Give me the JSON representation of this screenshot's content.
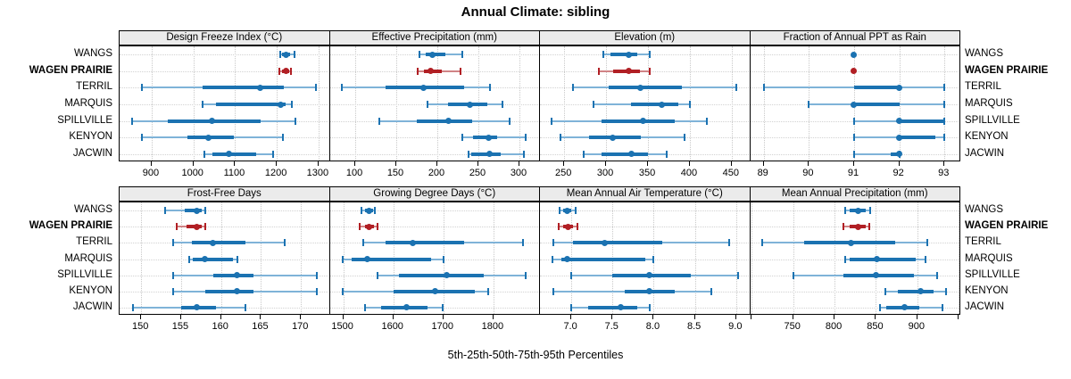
{
  "chart_data": {
    "type": "percentile-dotplot",
    "title": "Annual Climate: sibling",
    "xlabel": "5th-25th-50th-75th-95th Percentiles",
    "legend_position": "none",
    "grid": "dotted",
    "stations": [
      "WANGS",
      "WAGEN PRAIRIE",
      "TERRIL",
      "MARQUIS",
      "SPILLVILLE",
      "KENYON",
      "JACWIN"
    ],
    "highlighted_station": "WAGEN PRAIRIE",
    "percentile_levels": [
      5,
      25,
      50,
      75,
      95
    ],
    "colors": {
      "series": "#1b72b1",
      "series_light": "#7fb3d8",
      "highlight": "#b11f24",
      "highlight_light": "#d08385",
      "strip_bg": "#ebebeb",
      "grid": "#c9c9c9",
      "border": "#000000"
    },
    "panels": [
      {
        "title": "Design Freeze Index (°C)",
        "xlim": [
          823,
          1327
        ],
        "ticks": [
          900,
          1000,
          1100,
          1200,
          1300
        ],
        "tick_labels": [
          "900",
          "1000",
          "1100",
          "1200",
          "1300"
        ],
        "minor_ticks": [],
        "series": [
          {
            "station": "WANGS",
            "percentiles": [
              1208,
              1213,
              1222,
              1232,
              1243
            ]
          },
          {
            "station": "WAGEN PRAIRIE",
            "percentiles": [
              1206,
              1212,
              1222,
              1230,
              1233
            ]
          },
          {
            "station": "TERRIL",
            "percentiles": [
              877,
              1021,
              1161,
              1217,
              1294
            ]
          },
          {
            "station": "MARQUIS",
            "percentiles": [
              1023,
              1055,
              1209,
              1221,
              1235
            ]
          },
          {
            "station": "SPILLVILLE",
            "percentiles": [
              853,
              938,
              1045,
              1162,
              1245
            ]
          },
          {
            "station": "KENYON",
            "percentiles": [
              877,
              986,
              1035,
              1098,
              1214
            ]
          },
          {
            "station": "JACWIN",
            "percentiles": [
              1026,
              1045,
              1086,
              1150,
              1192
            ]
          }
        ]
      },
      {
        "title": "Effective Precipitation (mm)",
        "xlim": [
          69,
          325
        ],
        "ticks": [
          100,
          150,
          200,
          250,
          300
        ],
        "tick_labels": [
          "100",
          "150",
          "200",
          "250",
          "300"
        ],
        "minor_ticks": [],
        "series": [
          {
            "station": "WANGS",
            "percentiles": [
              178,
              186,
              194,
              210,
              230
            ]
          },
          {
            "station": "WAGEN PRAIRIE",
            "percentiles": [
              176,
              184,
              192,
              205,
              228
            ]
          },
          {
            "station": "TERRIL",
            "percentiles": [
              84,
              137,
              183,
              233,
              264
            ]
          },
          {
            "station": "MARQUIS",
            "percentiles": [
              188,
              213,
              240,
              261,
              279
            ]
          },
          {
            "station": "SPILLVILLE",
            "percentiles": [
              129,
              175,
              214,
              242,
              288
            ]
          },
          {
            "station": "KENYON",
            "percentiles": [
              230,
              243,
              262,
              273,
              308
            ]
          },
          {
            "station": "JACWIN",
            "percentiles": [
              238,
              241,
              264,
              277,
              305
            ]
          }
        ]
      },
      {
        "title": "Elevation (m)",
        "xlim": [
          221,
          472
        ],
        "ticks": [
          250,
          300,
          350,
          400,
          450
        ],
        "tick_labels": [
          "250",
          "300",
          "350",
          "400",
          "450"
        ],
        "minor_ticks": [],
        "series": [
          {
            "station": "WANGS",
            "percentiles": [
              297,
              305,
              327,
              337,
              352
            ]
          },
          {
            "station": "WAGEN PRAIRIE",
            "percentiles": [
              291,
              308,
              327,
              340,
              352
            ]
          },
          {
            "station": "TERRIL",
            "percentiles": [
              260,
              303,
              341,
              391,
              455
            ]
          },
          {
            "station": "MARQUIS",
            "percentiles": [
              285,
              330,
              367,
              386,
              400
            ]
          },
          {
            "station": "SPILLVILLE",
            "percentiles": [
              235,
              295,
              344,
              382,
              420
            ]
          },
          {
            "station": "KENYON",
            "percentiles": [
              245,
              280,
              308,
              341,
              394
            ]
          },
          {
            "station": "JACWIN",
            "percentiles": [
              273,
              295,
              330,
              350,
              372
            ]
          }
        ]
      },
      {
        "title": "Fraction of Annual PPT as Rain",
        "xlim": [
          88.7,
          93.35
        ],
        "ticks": [
          89,
          90,
          91,
          92,
          93
        ],
        "tick_labels": [
          "89",
          "90",
          "91",
          "92",
          "93"
        ],
        "minor_ticks": [],
        "series": [
          {
            "station": "WANGS",
            "percentiles": [
              91,
              91,
              91,
              91,
              91
            ]
          },
          {
            "station": "WAGEN PRAIRIE",
            "percentiles": [
              91,
              91,
              91,
              91,
              91
            ]
          },
          {
            "station": "TERRIL",
            "percentiles": [
              89,
              91,
              92,
              92,
              93
            ]
          },
          {
            "station": "MARQUIS",
            "percentiles": [
              90,
              91,
              91,
              92,
              93
            ]
          },
          {
            "station": "SPILLVILLE",
            "percentiles": [
              91,
              92,
              92,
              93,
              93
            ]
          },
          {
            "station": "KENYON",
            "percentiles": [
              91,
              92,
              92,
              92.8,
              93
            ]
          },
          {
            "station": "JACWIN",
            "percentiles": [
              91,
              91.8,
              92,
              92,
              92
            ]
          }
        ]
      },
      {
        "title": "Frost-Free Days",
        "xlim": [
          147.3,
          173.6
        ],
        "ticks": [
          150,
          155,
          160,
          165,
          170
        ],
        "tick_labels": [
          "150",
          "155",
          "160",
          "165",
          "170"
        ],
        "minor_ticks": [],
        "series": [
          {
            "station": "WANGS",
            "percentiles": [
              153,
              155.5,
              157,
              157.6,
              158
            ]
          },
          {
            "station": "WAGEN PRAIRIE",
            "percentiles": [
              154.5,
              155.7,
              157,
              157.6,
              158
            ]
          },
          {
            "station": "TERRIL",
            "percentiles": [
              154,
              156.4,
              159,
              163,
              168
            ]
          },
          {
            "station": "MARQUIS",
            "percentiles": [
              156,
              156.5,
              158,
              161.5,
              162
            ]
          },
          {
            "station": "SPILLVILLE",
            "percentiles": [
              154,
              159,
              162,
              164,
              172
            ]
          },
          {
            "station": "KENYON",
            "percentiles": [
              154,
              158,
              162,
              164,
              172
            ]
          },
          {
            "station": "JACWIN",
            "percentiles": [
              149,
              155,
              157,
              159.4,
              163
            ]
          }
        ]
      },
      {
        "title": "Growing Degree Days (°C)",
        "xlim": [
          1473,
          1893
        ],
        "ticks": [
          1500,
          1600,
          1700,
          1800
        ],
        "tick_labels": [
          "1500",
          "1600",
          "1700",
          "1800"
        ],
        "minor_ticks": [],
        "series": [
          {
            "station": "WANGS",
            "percentiles": [
              1537,
              1544,
              1551,
              1560,
              1563
            ]
          },
          {
            "station": "WAGEN PRAIRIE",
            "percentiles": [
              1533,
              1543,
              1552,
              1562,
              1568
            ]
          },
          {
            "station": "TERRIL",
            "percentiles": [
              1539,
              1585,
              1638,
              1742,
              1859
            ]
          },
          {
            "station": "MARQUIS",
            "percentiles": [
              1498,
              1516,
              1548,
              1676,
              1701
            ]
          },
          {
            "station": "SPILLVILLE",
            "percentiles": [
              1568,
              1611,
              1706,
              1781,
              1865
            ]
          },
          {
            "station": "KENYON",
            "percentiles": [
              1498,
              1600,
              1683,
              1763,
              1790
            ]
          },
          {
            "station": "JACWIN",
            "percentiles": [
              1544,
              1576,
              1627,
              1668,
              1699
            ]
          }
        ]
      },
      {
        "title": "Mean Annual Air Temperature (°C)",
        "xlim": [
          6.62,
          9.17
        ],
        "ticks": [
          7.0,
          7.5,
          8.0,
          8.5,
          9.0
        ],
        "tick_labels": [
          "7.0",
          "7.5",
          "8.0",
          "8.5",
          "9.0"
        ],
        "minor_ticks": [],
        "series": [
          {
            "station": "WANGS",
            "percentiles": [
              6.86,
              6.9,
              6.95,
              7.0,
              7.05
            ]
          },
          {
            "station": "WAGEN PRAIRIE",
            "percentiles": [
              6.85,
              6.9,
              6.96,
              7.02,
              7.08
            ]
          },
          {
            "station": "TERRIL",
            "percentiles": [
              6.78,
              7.02,
              7.4,
              8.1,
              8.92
            ]
          },
          {
            "station": "MARQUIS",
            "percentiles": [
              6.77,
              6.88,
              6.95,
              7.9,
              8.0
            ]
          },
          {
            "station": "SPILLVILLE",
            "percentiles": [
              7.0,
              7.5,
              7.95,
              8.45,
              9.02
            ]
          },
          {
            "station": "KENYON",
            "percentiles": [
              6.78,
              7.65,
              7.95,
              8.25,
              8.7
            ]
          },
          {
            "station": "JACWIN",
            "percentiles": [
              7.0,
              7.2,
              7.6,
              7.8,
              7.95
            ]
          }
        ]
      },
      {
        "title": "Mean Annual Precipitation (mm)",
        "xlim": [
          698,
          952
        ],
        "ticks": [
          750,
          800,
          850,
          900
        ],
        "tick_labels": [
          "750",
          "800",
          "850",
          "900"
        ],
        "minor_ticks": [
          700,
          950
        ],
        "series": [
          {
            "station": "WANGS",
            "percentiles": [
              813,
              818,
              828,
              838,
              843
            ]
          },
          {
            "station": "WAGEN PRAIRIE",
            "percentiles": [
              811,
              818,
              829,
              838,
              842
            ]
          },
          {
            "station": "TERRIL",
            "percentiles": [
              713,
              763,
              820,
              873,
              912
            ]
          },
          {
            "station": "MARQUIS",
            "percentiles": [
              813,
              818,
              851,
              898,
              910
            ]
          },
          {
            "station": "SPILLVILLE",
            "percentiles": [
              750,
              811,
              850,
              896,
              924
            ]
          },
          {
            "station": "KENYON",
            "percentiles": [
              861,
              876,
              904,
              920,
              935
            ]
          },
          {
            "station": "JACWIN",
            "percentiles": [
              855,
              862,
              885,
              902,
              930
            ]
          }
        ]
      }
    ]
  }
}
